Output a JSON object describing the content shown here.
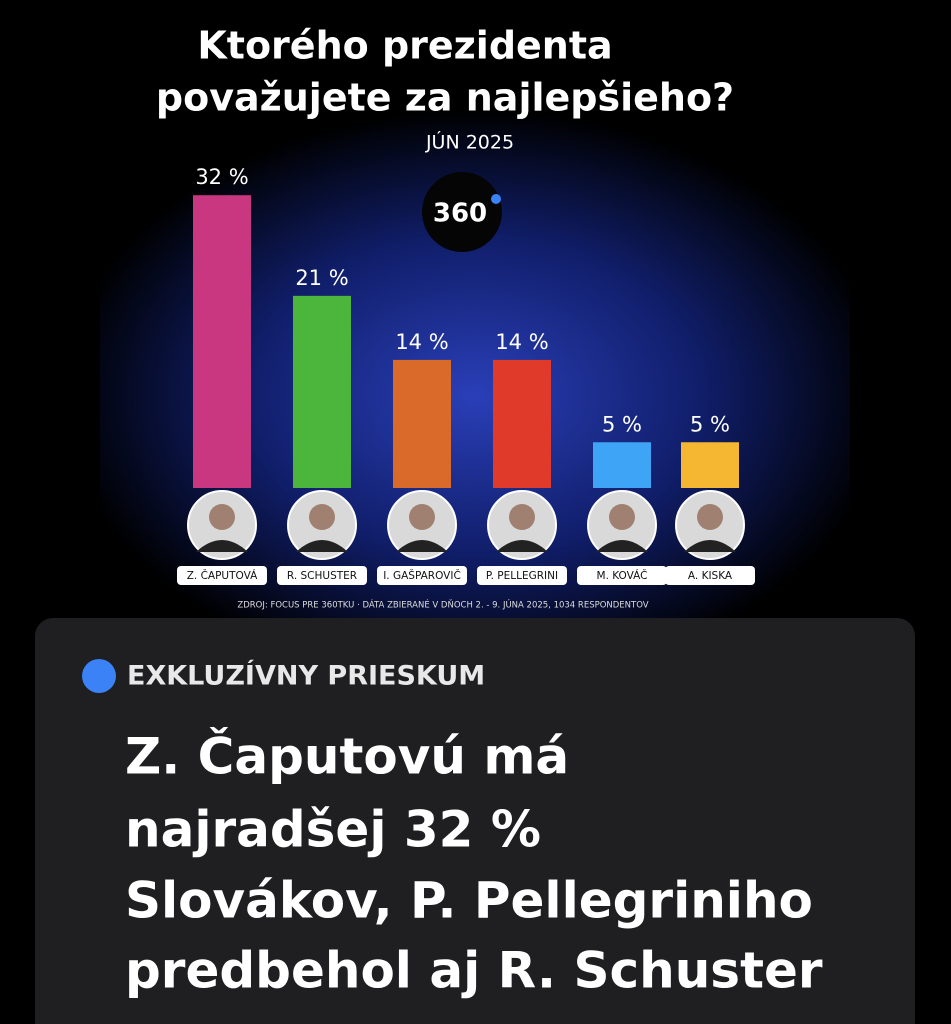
{
  "chart_data": {
    "type": "bar",
    "title": [
      "Ktorého prezidenta",
      "považujete za najlepšieho?"
    ],
    "subtitle": "JÚN 2025",
    "logo": "360",
    "categories": [
      "Z. ČAPUTOVÁ",
      "R. SCHUSTER",
      "I. GAŠPAROVIČ",
      "P. PELLEGRINI",
      "M. KOVÁČ",
      "A. KISKA"
    ],
    "values": [
      32,
      21,
      14,
      14,
      5,
      5
    ],
    "value_labels": [
      "32 %",
      "21 %",
      "14 %",
      "14 %",
      "5 %",
      "5 %"
    ],
    "colors": [
      "#c8377f",
      "#4cb63c",
      "#d96a2a",
      "#e03a2a",
      "#3ea4f5",
      "#f5b731"
    ],
    "source": "ZDROJ: FOCUS PRE 360TKU · DÁTA ZBIERANÉ V DŇOCH 2. - 9. JÚNA 2025, 1034 RESPONDENTOV"
  },
  "card": {
    "label": "EXKLUZÍVNY PRIESKUM",
    "headline": [
      "Z. Čaputovú má",
      "najradšej 32 %",
      "Slovákov, P. Pellegriniho",
      "predbehol aj R. Schuster"
    ]
  }
}
